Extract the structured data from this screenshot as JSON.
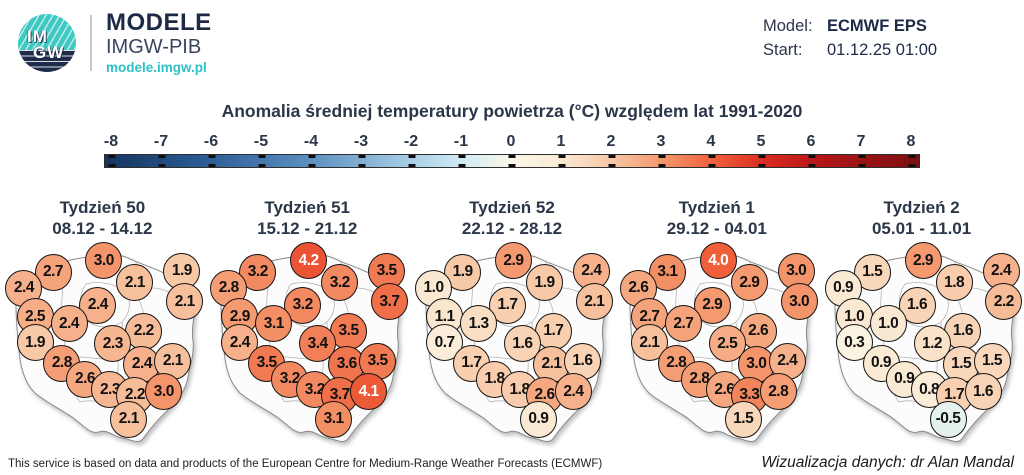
{
  "header": {
    "logo": {
      "line1": "IM",
      "line2": "GW"
    },
    "brand": {
      "title": "MODELE",
      "subtitle": "IMGW-PIB",
      "url": "modele.imgw.pl"
    },
    "model": {
      "label": "Model:",
      "value": "ECMWF EPS"
    },
    "start": {
      "label": "Start:",
      "value": "01.12.25 01:00"
    }
  },
  "title": "Anomalia średniej temperatury powietrza (°C) względem lat 1991-2020",
  "footer": {
    "attribution": "This service is based on data and products of the European Centre for Medium-Range Weather Forecasts (ECMWF)",
    "credit": "Wizualizacja danych: dr Alan Mandal"
  },
  "colors": {
    "navy": "#2b3648",
    "brand_navy": "#1d2a46",
    "teal": "#2fc1c4"
  },
  "chart_data": {
    "type": "scatter",
    "subtype": "small-multiple bubble maps of Poland",
    "title": "Anomalia średniej temperatury powietrza (°C) względem lat 1991-2020",
    "unit": "°C",
    "colorbar": {
      "ticks": [
        -8,
        -7,
        -6,
        -5,
        -4,
        -3,
        -2,
        -1,
        0,
        1,
        2,
        3,
        4,
        5,
        6,
        7,
        8
      ],
      "domain": [
        -8,
        8
      ],
      "stops": [
        {
          "v": -8,
          "c": "#14355f"
        },
        {
          "v": -6,
          "c": "#2c5d96"
        },
        {
          "v": -4,
          "c": "#5b8fc0"
        },
        {
          "v": -2,
          "c": "#a6cde4"
        },
        {
          "v": -1,
          "c": "#cfeaf4"
        },
        {
          "v": 0,
          "c": "#fbf7e8"
        },
        {
          "v": 1,
          "c": "#fae9d2"
        },
        {
          "v": 2,
          "c": "#f7c5a2"
        },
        {
          "v": 3,
          "c": "#f4946a"
        },
        {
          "v": 4,
          "c": "#ee5f3a"
        },
        {
          "v": 5,
          "c": "#d92a20"
        },
        {
          "v": 6,
          "c": "#b51717"
        },
        {
          "v": 8,
          "c": "#7a0f12"
        }
      ],
      "white_text_threshold": 4
    },
    "stations_xy_percent": [
      [
        25.9,
        12.7
      ],
      [
        50.7,
        7.3
      ],
      [
        65.9,
        18.0
      ],
      [
        88.8,
        12.2
      ],
      [
        11.7,
        20.5
      ],
      [
        90.2,
        27.3
      ],
      [
        47.8,
        28.8
      ],
      [
        17.1,
        34.6
      ],
      [
        33.7,
        38.0
      ],
      [
        70.2,
        41.5
      ],
      [
        17.1,
        47.3
      ],
      [
        55.1,
        47.8
      ],
      [
        30.2,
        57.1
      ],
      [
        69.3,
        57.6
      ],
      [
        84.4,
        56.1
      ],
      [
        41.5,
        64.9
      ],
      [
        53.7,
        70.2
      ],
      [
        65.9,
        72.7
      ],
      [
        80.0,
        71.2
      ],
      [
        62.9,
        84.4
      ]
    ],
    "weeks": [
      {
        "label": "Tydzień 50",
        "dates": "08.12 - 14.12",
        "values": [
          2.7,
          3.0,
          2.1,
          1.9,
          2.4,
          2.1,
          2.4,
          2.5,
          2.4,
          2.2,
          1.9,
          2.3,
          2.8,
          2.4,
          2.1,
          2.6,
          2.3,
          2.2,
          3.0,
          2.1
        ]
      },
      {
        "label": "Tydzień 51",
        "dates": "15.12 - 21.12",
        "values": [
          3.2,
          4.2,
          3.2,
          3.5,
          2.8,
          3.7,
          3.2,
          2.9,
          3.1,
          3.5,
          2.4,
          3.4,
          3.5,
          3.6,
          3.5,
          3.2,
          3.2,
          3.7,
          4.1,
          3.1
        ]
      },
      {
        "label": "Tydzień 52",
        "dates": "22.12 - 28.12",
        "values": [
          1.9,
          2.9,
          1.9,
          2.4,
          1.0,
          2.1,
          1.7,
          1.1,
          1.3,
          1.7,
          0.7,
          1.6,
          1.7,
          2.1,
          1.6,
          1.8,
          1.8,
          2.6,
          2.4,
          0.9
        ]
      },
      {
        "label": "Tydzień 1",
        "dates": "29.12 - 04.01",
        "values": [
          3.1,
          4.0,
          2.9,
          3.0,
          2.6,
          3.0,
          2.9,
          2.7,
          2.7,
          2.6,
          2.1,
          2.5,
          2.8,
          3.0,
          2.4,
          2.8,
          2.6,
          3.3,
          2.8,
          1.5
        ]
      },
      {
        "label": "Tydzień 2",
        "dates": "05.01 - 11.01",
        "values": [
          1.5,
          2.9,
          1.8,
          2.4,
          0.9,
          2.2,
          1.6,
          1.0,
          1.0,
          1.6,
          0.3,
          1.2,
          0.9,
          1.5,
          1.5,
          0.9,
          0.8,
          1.7,
          1.6,
          -0.5
        ]
      }
    ]
  }
}
